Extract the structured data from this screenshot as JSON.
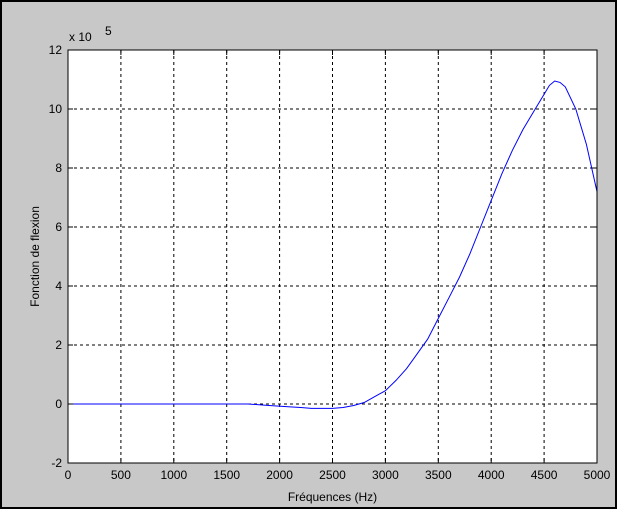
{
  "chart_data": {
    "type": "line",
    "title": "",
    "xlabel": "Fréquences (Hz)",
    "ylabel": "Fonction de flexion",
    "y_multiplier": {
      "base": "x 10",
      "exponent": "5"
    },
    "xlim": [
      0,
      5000
    ],
    "ylim": [
      -2,
      12
    ],
    "xticks": [
      0,
      500,
      1000,
      1500,
      2000,
      2500,
      3000,
      3500,
      4000,
      4500,
      5000
    ],
    "yticks": [
      -2,
      0,
      2,
      4,
      6,
      8,
      10,
      12
    ],
    "grid": true,
    "grid_style": "dashed",
    "series": [
      {
        "color": "#0000ff",
        "x": [
          0,
          500,
          1000,
          1500,
          1700,
          1900,
          2100,
          2200,
          2300,
          2400,
          2500,
          2600,
          2700,
          2800,
          2900,
          3000,
          3100,
          3200,
          3300,
          3400,
          3500,
          3600,
          3700,
          3800,
          3900,
          4000,
          4100,
          4200,
          4300,
          4400,
          4500,
          4550,
          4600,
          4650,
          4700,
          4800,
          4900,
          5000
        ],
        "y": [
          0,
          0,
          0,
          0,
          0,
          -0.05,
          -0.1,
          -0.12,
          -0.15,
          -0.15,
          -0.15,
          -0.12,
          -0.05,
          0.05,
          0.25,
          0.45,
          0.8,
          1.2,
          1.7,
          2.2,
          2.9,
          3.6,
          4.3,
          5.1,
          6.0,
          6.9,
          7.8,
          8.6,
          9.3,
          9.9,
          10.5,
          10.8,
          10.95,
          10.9,
          10.75,
          10.0,
          8.8,
          7.2
        ]
      }
    ]
  },
  "colors": {
    "panel": "#c8c8c8",
    "plot_bg": "#ffffff",
    "line": "#0000ff",
    "axes": "#000000"
  }
}
